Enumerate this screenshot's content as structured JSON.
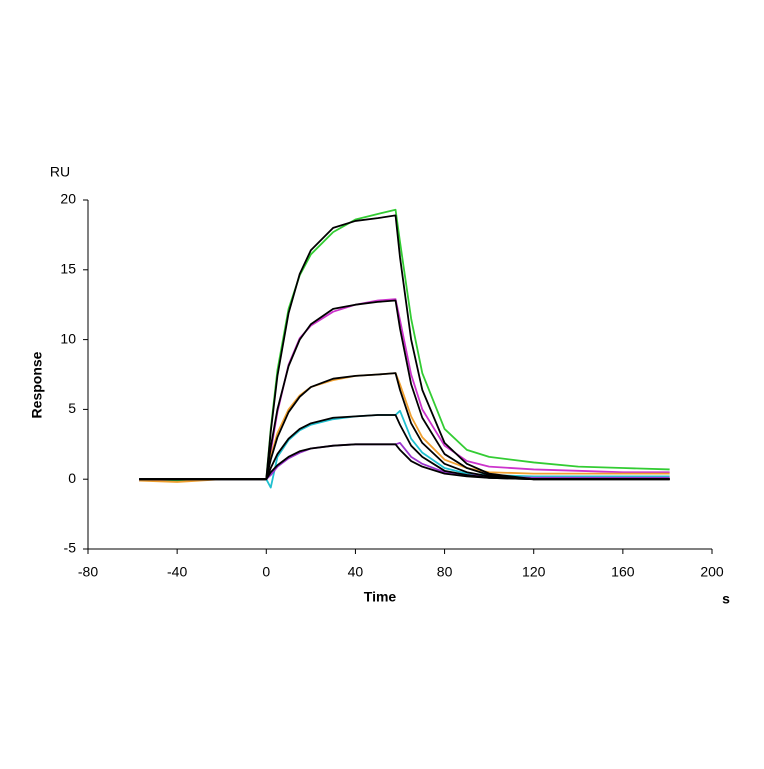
{
  "chart_data": {
    "type": "line",
    "y_unit": "RU",
    "ylabel": "Response",
    "xlabel": "Time",
    "x_unit": "s",
    "x": [
      -57,
      -40,
      -20,
      0,
      2,
      5,
      10,
      15,
      20,
      30,
      40,
      50,
      58,
      60,
      65,
      70,
      80,
      90,
      100,
      120,
      140,
      160,
      181
    ],
    "series": [
      {
        "color": "#33cc33",
        "values": [
          -0.1,
          -0.1,
          0,
          0,
          3.6,
          7.8,
          12.2,
          14.6,
          16.1,
          17.7,
          18.6,
          19.0,
          19.3,
          17.0,
          11.5,
          7.6,
          3.6,
          2.1,
          1.6,
          1.2,
          0.9,
          0.8,
          0.7
        ]
      },
      {
        "color": "#cc33cc",
        "values": [
          -0.1,
          0,
          0,
          0,
          2.0,
          4.8,
          8.2,
          10.1,
          11.0,
          12.0,
          12.5,
          12.8,
          12.9,
          11.4,
          7.5,
          5.0,
          2.4,
          1.3,
          0.9,
          0.7,
          0.6,
          0.5,
          0.5
        ]
      },
      {
        "color": "#f0a030",
        "values": [
          -0.1,
          -0.2,
          0,
          0,
          1.6,
          3.3,
          5.0,
          6.0,
          6.6,
          7.1,
          7.4,
          7.5,
          7.6,
          6.8,
          4.5,
          3.0,
          1.4,
          0.8,
          0.5,
          0.4,
          0.4,
          0.4,
          0.4
        ]
      },
      {
        "color": "#20c0d0",
        "values": [
          0,
          0,
          0,
          0,
          -0.6,
          1.6,
          2.8,
          3.5,
          3.9,
          4.3,
          4.5,
          4.6,
          4.6,
          4.9,
          2.9,
          1.9,
          0.8,
          0.4,
          0.3,
          0.2,
          0.2,
          0.2,
          0.2
        ]
      },
      {
        "color": "#9933cc",
        "values": [
          0,
          0,
          0,
          0,
          0.3,
          0.9,
          1.5,
          1.9,
          2.2,
          2.4,
          2.5,
          2.5,
          2.5,
          2.6,
          1.6,
          1.1,
          0.5,
          0.3,
          0.2,
          0.1,
          0.1,
          0.1,
          0.1
        ]
      },
      {
        "color": "#000000",
        "values": [
          0,
          0,
          0,
          0,
          3.4,
          7.4,
          11.9,
          14.7,
          16.4,
          18.0,
          18.5,
          18.7,
          18.9,
          15.9,
          10.0,
          6.4,
          2.6,
          1.1,
          0.4,
          0,
          0,
          0,
          0
        ]
      },
      {
        "color": "#000000",
        "values": [
          0,
          0,
          0,
          0,
          2.3,
          5.0,
          8.1,
          10.0,
          11.1,
          12.2,
          12.5,
          12.7,
          12.8,
          10.8,
          6.8,
          4.4,
          1.8,
          0.8,
          0.3,
          0,
          0,
          0,
          0
        ]
      },
      {
        "color": "#000000",
        "values": [
          0,
          0,
          0,
          0,
          1.4,
          3.0,
          4.8,
          5.9,
          6.6,
          7.2,
          7.4,
          7.5,
          7.6,
          6.4,
          4.0,
          2.6,
          1.1,
          0.5,
          0.2,
          0,
          0,
          0,
          0
        ]
      },
      {
        "color": "#000000",
        "values": [
          0,
          0,
          0,
          0,
          0.8,
          1.8,
          2.9,
          3.6,
          4.0,
          4.4,
          4.5,
          4.6,
          4.6,
          3.9,
          2.4,
          1.6,
          0.6,
          0.3,
          0.1,
          0,
          0,
          0,
          0
        ]
      },
      {
        "color": "#000000",
        "values": [
          0,
          0,
          0,
          0,
          0.5,
          1.0,
          1.6,
          2.0,
          2.2,
          2.4,
          2.5,
          2.5,
          2.5,
          2.1,
          1.3,
          0.9,
          0.4,
          0.2,
          0.1,
          0,
          0,
          0,
          0
        ]
      }
    ],
    "xlim": [
      -80,
      200
    ],
    "xticks": [
      -80,
      -40,
      0,
      40,
      80,
      120,
      160,
      200
    ],
    "ylim": [
      -5,
      20
    ],
    "yticks": [
      -5,
      0,
      5,
      10,
      15,
      20
    ]
  }
}
